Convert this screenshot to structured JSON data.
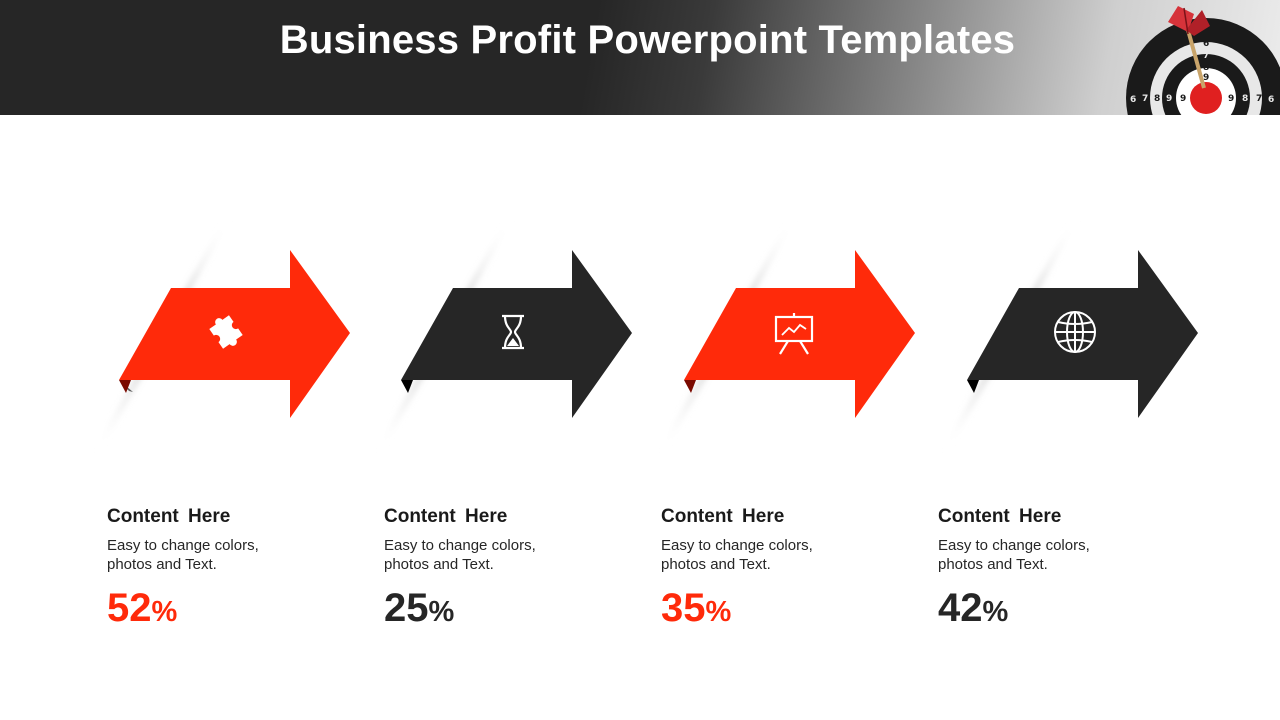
{
  "header": {
    "title": "Business Profit Powerpoint Templates"
  },
  "colors": {
    "accent": "#ff2a0a",
    "dark": "#262626"
  },
  "steps": [
    {
      "icon": "puzzle-icon",
      "heading": "Content  Here",
      "desc": "Easy to change colors, photos and Text.",
      "value": "52",
      "unit": "%",
      "color": "#ff2a0a"
    },
    {
      "icon": "hourglass-icon",
      "heading": "Content  Here",
      "desc": "Easy to change colors, photos and Text.",
      "value": "25",
      "unit": "%",
      "color": "#262626"
    },
    {
      "icon": "presentation-board-icon",
      "heading": "Content  Here",
      "desc": "Easy to change colors, photos and Text.",
      "value": "35",
      "unit": "%",
      "color": "#ff2a0a"
    },
    {
      "icon": "globe-icon",
      "heading": "Content  Here",
      "desc": "Easy to change colors, photos and Text.",
      "value": "42",
      "unit": "%",
      "color": "#262626"
    }
  ]
}
